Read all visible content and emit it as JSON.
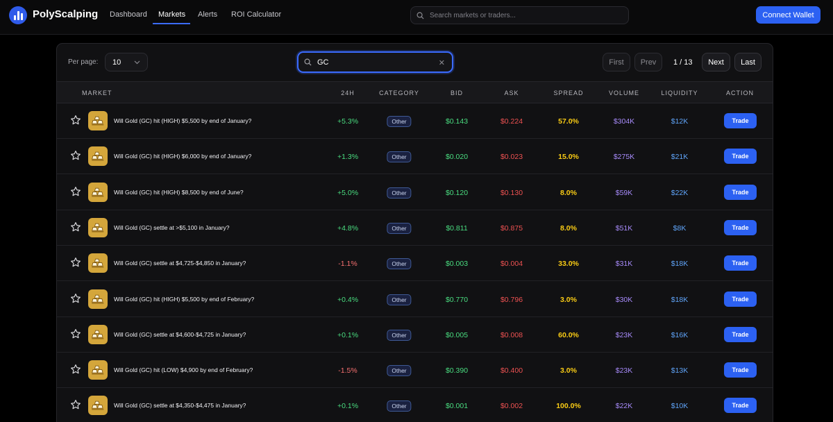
{
  "brand": {
    "name": "PolyScalping",
    "color": "#2f5bea"
  },
  "nav": {
    "links": [
      {
        "label": "Dashboard",
        "active": false
      },
      {
        "label": "Markets",
        "active": true
      },
      {
        "label": "Alerts",
        "active": false
      },
      {
        "label": "ROI Calculator",
        "active": false
      }
    ],
    "search_placeholder": "Search markets or traders...",
    "connect_label": "Connect Wallet"
  },
  "toolbar": {
    "per_page_label": "Per page:",
    "per_page_value": "10",
    "search_value": "GC",
    "first_label": "First",
    "prev_label": "Prev",
    "page_info": "1 / 13",
    "next_label": "Next",
    "last_label": "Last"
  },
  "columns": [
    "Market",
    "24h",
    "Category",
    "Bid",
    "Ask",
    "Spread",
    "Volume",
    "Liquidity",
    "Action"
  ],
  "colors": {
    "positive": "#4ade80",
    "negative": "#f87171",
    "bid": "#4ade80",
    "ask": "#f05252",
    "spread": "#facc15",
    "volume": "#a78bfa",
    "liquidity": "#60a5fa",
    "accent": "#2c61f2"
  },
  "rows": [
    {
      "market": "Will Gold (GC) hit (HIGH) $5,500 by end of January?",
      "change": "+5.3%",
      "category": "Other",
      "bid": "$0.143",
      "ask": "$0.224",
      "spread": "57.0%",
      "volume": "$304K",
      "liquidity": "$12K",
      "action": "Trade"
    },
    {
      "market": "Will Gold (GC) hit (HIGH) $6,000 by end of January?",
      "change": "+1.3%",
      "category": "Other",
      "bid": "$0.020",
      "ask": "$0.023",
      "spread": "15.0%",
      "volume": "$275K",
      "liquidity": "$21K",
      "action": "Trade"
    },
    {
      "market": "Will Gold (GC) hit (HIGH) $8,500 by end of June?",
      "change": "+5.0%",
      "category": "Other",
      "bid": "$0.120",
      "ask": "$0.130",
      "spread": "8.0%",
      "volume": "$59K",
      "liquidity": "$22K",
      "action": "Trade"
    },
    {
      "market": "Will Gold (GC) settle at >$5,100 in January?",
      "change": "+4.8%",
      "category": "Other",
      "bid": "$0.811",
      "ask": "$0.875",
      "spread": "8.0%",
      "volume": "$51K",
      "liquidity": "$8K",
      "action": "Trade"
    },
    {
      "market": "Will Gold (GC) settle at $4,725-$4,850 in January?",
      "change": "-1.1%",
      "category": "Other",
      "bid": "$0.003",
      "ask": "$0.004",
      "spread": "33.0%",
      "volume": "$31K",
      "liquidity": "$18K",
      "action": "Trade"
    },
    {
      "market": "Will Gold (GC) hit (HIGH) $5,500 by end of February?",
      "change": "+0.4%",
      "category": "Other",
      "bid": "$0.770",
      "ask": "$0.796",
      "spread": "3.0%",
      "volume": "$30K",
      "liquidity": "$18K",
      "action": "Trade"
    },
    {
      "market": "Will Gold (GC) settle at $4,600-$4,725 in January?",
      "change": "+0.1%",
      "category": "Other",
      "bid": "$0.005",
      "ask": "$0.008",
      "spread": "60.0%",
      "volume": "$23K",
      "liquidity": "$16K",
      "action": "Trade"
    },
    {
      "market": "Will Gold (GC) hit (LOW) $4,900 by end of February?",
      "change": "-1.5%",
      "category": "Other",
      "bid": "$0.390",
      "ask": "$0.400",
      "spread": "3.0%",
      "volume": "$23K",
      "liquidity": "$13K",
      "action": "Trade"
    },
    {
      "market": "Will Gold (GC) settle at $4,350-$4,475 in January?",
      "change": "+0.1%",
      "category": "Other",
      "bid": "$0.001",
      "ask": "$0.002",
      "spread": "100.0%",
      "volume": "$22K",
      "liquidity": "$10K",
      "action": "Trade"
    }
  ]
}
